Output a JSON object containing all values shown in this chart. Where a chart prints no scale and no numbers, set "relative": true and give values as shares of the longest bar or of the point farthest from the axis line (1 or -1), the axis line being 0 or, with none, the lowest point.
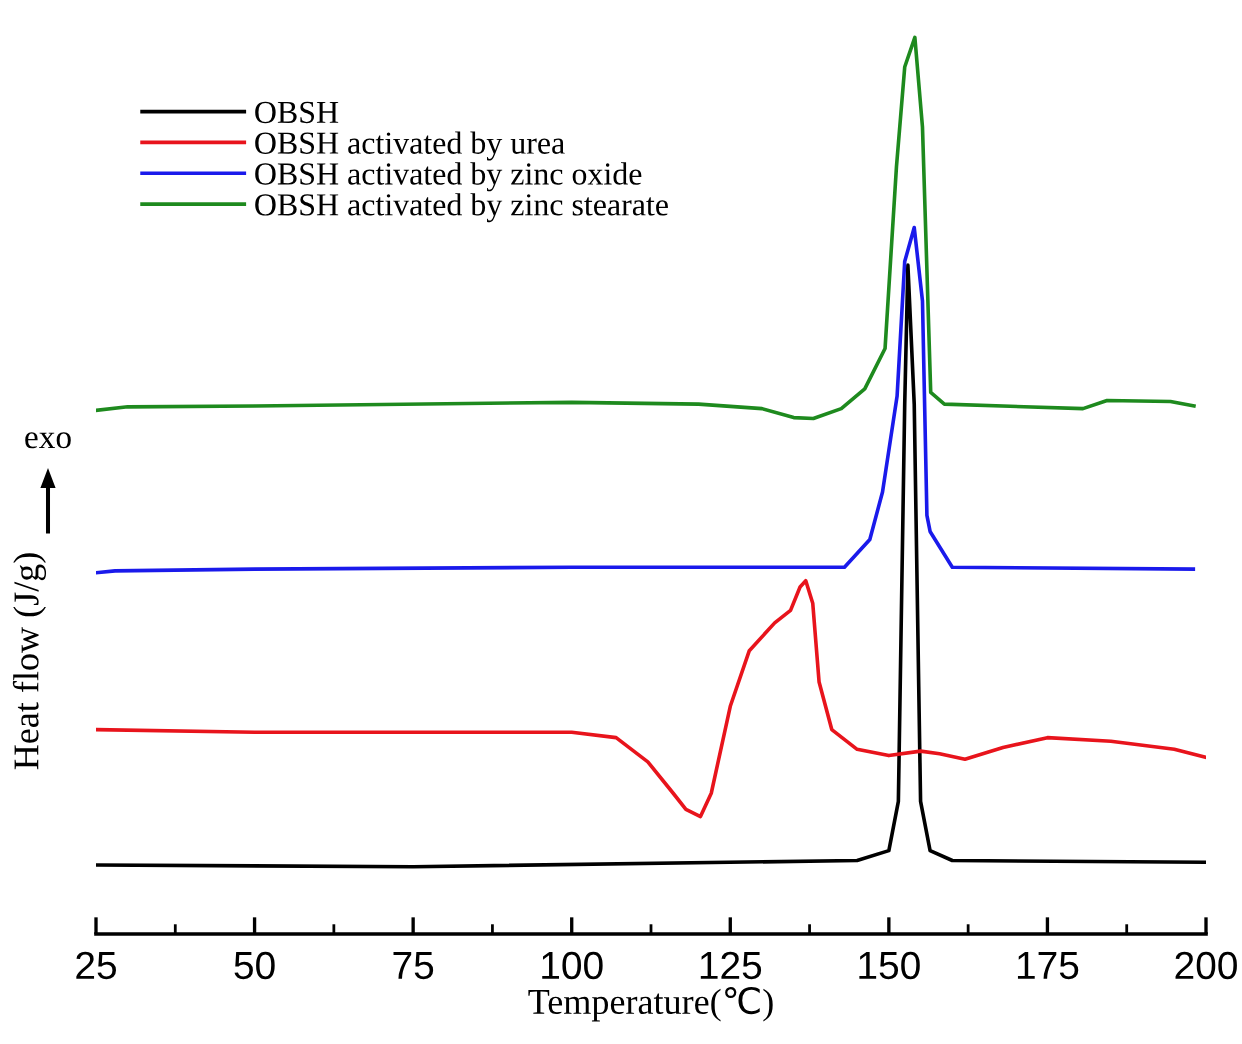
{
  "chart_data": {
    "type": "line",
    "relative": true,
    "xlabel": "Temperature(℃)",
    "ylabel": "Heat flow (J/g)",
    "annotations": [
      "exo"
    ],
    "xlim": [
      25,
      200
    ],
    "xticks": [
      25,
      50,
      75,
      100,
      125,
      150,
      175,
      200
    ],
    "legend": "top left",
    "grid": false,
    "tick_labels": "x",
    "series": [
      {
        "name": "OBSH",
        "color": "#000000",
        "x": [
          25,
          75,
          145,
          150,
          151.5,
          152.5,
          153,
          154,
          155,
          156.5,
          160,
          200
        ],
        "values": [
          0.077,
          0.075,
          0.082,
          0.093,
          0.148,
          0.591,
          0.746,
          0.591,
          0.148,
          0.093,
          0.082,
          0.08
        ]
      },
      {
        "name": "OBSH activated by urea",
        "color": "#e8141c",
        "x": [
          25,
          50,
          100,
          107,
          112,
          116,
          118,
          120.3,
          122,
          125,
          128,
          132,
          134.5,
          136,
          136.9,
          138,
          139,
          141,
          145,
          150,
          155,
          158,
          162,
          168,
          175,
          185,
          195,
          200
        ],
        "values": [
          0.228,
          0.225,
          0.225,
          0.219,
          0.192,
          0.157,
          0.139,
          0.131,
          0.157,
          0.254,
          0.316,
          0.347,
          0.361,
          0.387,
          0.394,
          0.369,
          0.281,
          0.228,
          0.206,
          0.199,
          0.204,
          0.201,
          0.195,
          0.208,
          0.219,
          0.215,
          0.206,
          0.197
        ]
      },
      {
        "name": "OBSH activated by zinc oxide",
        "color": "#1a1aeb",
        "x": [
          25,
          28,
          50,
          100,
          143,
          147,
          149,
          151.3,
          152.5,
          154,
          155.3,
          156,
          156.5,
          160,
          198
        ],
        "values": [
          0.403,
          0.405,
          0.407,
          0.409,
          0.409,
          0.44,
          0.493,
          0.6,
          0.75,
          0.788,
          0.706,
          0.467,
          0.449,
          0.409,
          0.407
        ]
      },
      {
        "name": "OBSH activated by zinc stearate",
        "color": "#1e8a1e",
        "x": [
          25,
          30,
          50,
          100,
          120,
          130,
          135,
          138.1,
          142.5,
          146.2,
          149.4,
          151.2,
          152.5,
          154.1,
          155.3,
          156.6,
          158.75,
          180.6,
          184.4,
          194.4,
          198.1
        ],
        "values": [
          0.584,
          0.588,
          0.589,
          0.593,
          0.591,
          0.586,
          0.576,
          0.575,
          0.586,
          0.608,
          0.653,
          0.856,
          0.967,
          1.0,
          0.9,
          0.604,
          0.591,
          0.586,
          0.595,
          0.594,
          0.589
        ]
      }
    ]
  }
}
